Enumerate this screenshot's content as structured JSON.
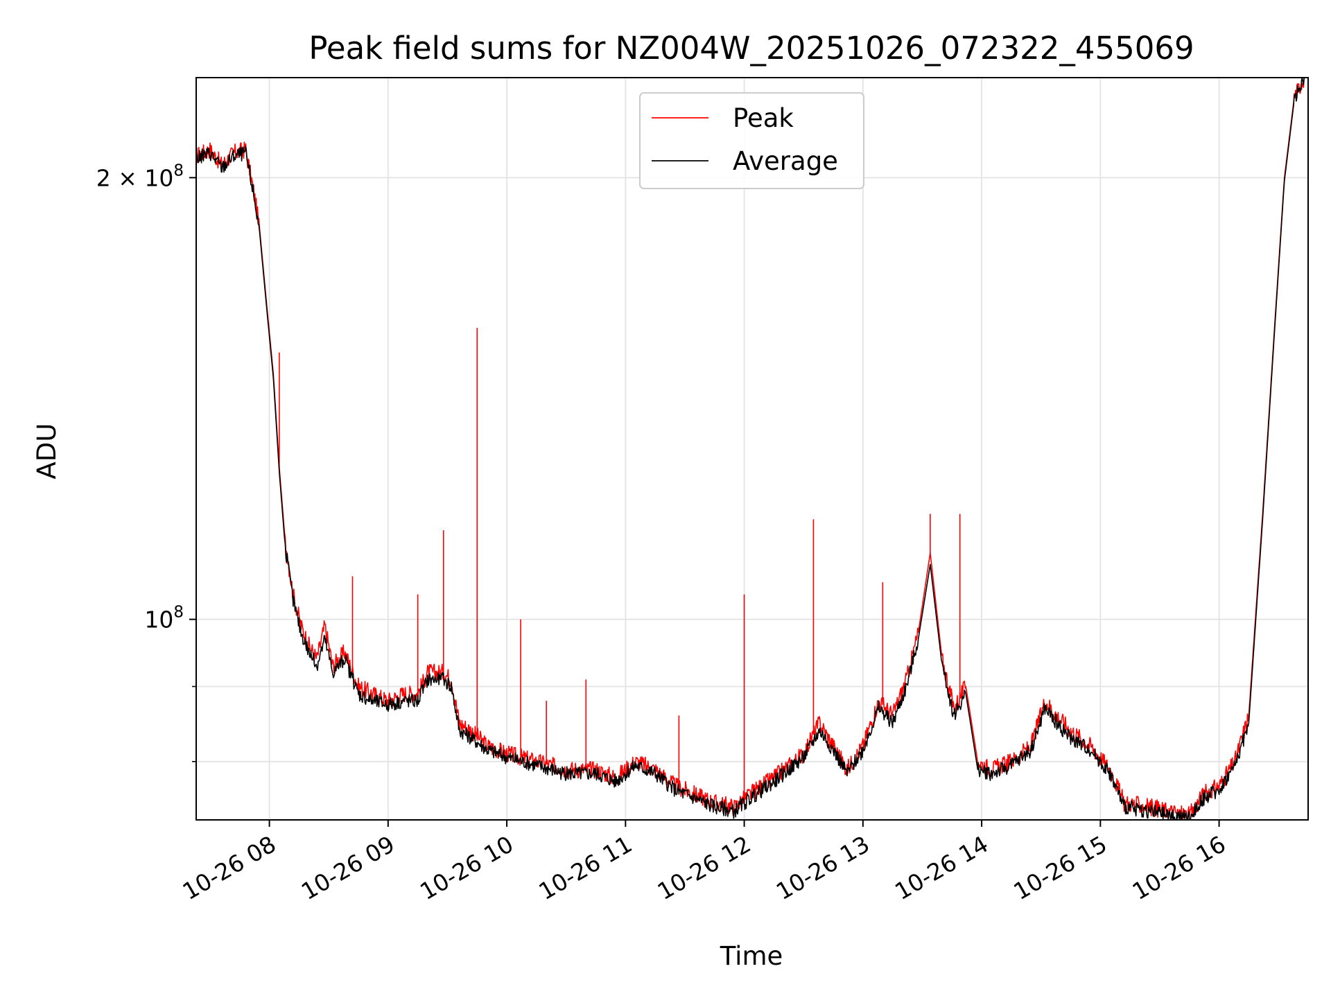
{
  "chart_data": {
    "type": "line",
    "title": "Peak field sums for NZ004W_20251026_072322_455069",
    "xlabel": "Time",
    "ylabel": "ADU",
    "yscale": "log",
    "xlim": [
      "2025-10-26T07:23",
      "2025-10-26T16:45"
    ],
    "ylim": [
      73000000,
      234000000
    ],
    "grid": true,
    "legend_position": "top-center",
    "x_ticks": [
      "10-26 08",
      "10-26 09",
      "10-26 10",
      "10-26 11",
      "10-26 12",
      "10-26 13",
      "10-26 14",
      "10-26 15",
      "10-26 16"
    ],
    "y_ticks": [
      {
        "value": 200000000,
        "label_base": "2 × 10",
        "label_exp": "8"
      },
      {
        "value": 100000000,
        "label_base": "10",
        "label_exp": "8"
      }
    ],
    "y_minor_ticks": [
      90000000,
      80000000
    ],
    "series": [
      {
        "name": "Peak",
        "color": "#ff0000",
        "points": [
          [
            "07:23",
            207000000
          ],
          [
            "07:30",
            209000000
          ],
          [
            "07:36",
            204000000
          ],
          [
            "07:42",
            208000000
          ],
          [
            "07:48",
            209000000
          ],
          [
            "07:52",
            196000000
          ],
          [
            "07:55",
            185000000
          ],
          [
            "07:59",
            162000000
          ],
          [
            "08:02",
            147000000
          ],
          [
            "08:05",
            127000000
          ],
          [
            "08:08",
            113000000
          ],
          [
            "08:12",
            104000000
          ],
          [
            "08:16",
            99000000
          ],
          [
            "08:20",
            96000000
          ],
          [
            "08:24",
            94000000
          ],
          [
            "08:28",
            99000000
          ],
          [
            "08:32",
            93000000
          ],
          [
            "08:38",
            95000000
          ],
          [
            "08:45",
            90000000
          ],
          [
            "08:52",
            89000000
          ],
          [
            "09:00",
            88000000
          ],
          [
            "09:08",
            89000000
          ],
          [
            "09:15",
            89000000
          ],
          [
            "09:20",
            92000000
          ],
          [
            "09:28",
            92000000
          ],
          [
            "09:32",
            91000000
          ],
          [
            "09:36",
            85000000
          ],
          [
            "09:42",
            84000000
          ],
          [
            "09:50",
            82000000
          ],
          [
            "10:00",
            81000000
          ],
          [
            "10:15",
            80000000
          ],
          [
            "10:30",
            79000000
          ],
          [
            "10:45",
            79000000
          ],
          [
            "10:55",
            78000000
          ],
          [
            "11:05",
            80000000
          ],
          [
            "11:15",
            79000000
          ],
          [
            "11:25",
            77000000
          ],
          [
            "11:35",
            76000000
          ],
          [
            "11:45",
            75000000
          ],
          [
            "11:55",
            74500000
          ],
          [
            "12:03",
            76000000
          ],
          [
            "12:15",
            78000000
          ],
          [
            "12:30",
            81000000
          ],
          [
            "12:38",
            85000000
          ],
          [
            "12:45",
            82000000
          ],
          [
            "12:52",
            79000000
          ],
          [
            "13:00",
            82000000
          ],
          [
            "13:08",
            88000000
          ],
          [
            "13:15",
            86000000
          ],
          [
            "13:22",
            91000000
          ],
          [
            "13:28",
            98000000
          ],
          [
            "13:34",
            111000000
          ],
          [
            "13:40",
            94000000
          ],
          [
            "13:46",
            87000000
          ],
          [
            "13:52",
            90000000
          ],
          [
            "13:58",
            80000000
          ],
          [
            "14:05",
            79000000
          ],
          [
            "14:15",
            80000000
          ],
          [
            "14:25",
            82000000
          ],
          [
            "14:32",
            88000000
          ],
          [
            "14:38",
            86000000
          ],
          [
            "14:45",
            84000000
          ],
          [
            "14:55",
            82000000
          ],
          [
            "15:05",
            79000000
          ],
          [
            "15:12",
            75000000
          ],
          [
            "15:25",
            74500000
          ],
          [
            "15:35",
            74000000
          ],
          [
            "15:45",
            73500000
          ],
          [
            "15:52",
            76000000
          ],
          [
            "16:00",
            77000000
          ],
          [
            "16:08",
            80000000
          ],
          [
            "16:15",
            86000000
          ],
          [
            "16:22",
            118000000
          ],
          [
            "16:28",
            158000000
          ],
          [
            "16:33",
            200000000
          ],
          [
            "16:38",
            227000000
          ],
          [
            "16:43",
            234000000
          ]
        ],
        "spikes": [
          [
            "08:05",
            152000000
          ],
          [
            "08:42",
            107000000
          ],
          [
            "09:15",
            104000000
          ],
          [
            "09:28",
            115000000
          ],
          [
            "09:45",
            158000000
          ],
          [
            "10:07",
            100000000
          ],
          [
            "10:20",
            88000000
          ],
          [
            "10:40",
            91000000
          ],
          [
            "11:27",
            86000000
          ],
          [
            "12:00",
            104000000
          ],
          [
            "12:35",
            117000000
          ],
          [
            "13:10",
            106000000
          ],
          [
            "13:34",
            118000000
          ],
          [
            "13:49",
            118000000
          ]
        ]
      },
      {
        "name": "Average",
        "color": "#000000",
        "points": [
          [
            "07:23",
            206000000
          ],
          [
            "07:30",
            208000000
          ],
          [
            "07:36",
            203000000
          ],
          [
            "07:42",
            207000000
          ],
          [
            "07:48",
            208000000
          ],
          [
            "07:52",
            195000000
          ],
          [
            "07:55",
            184000000
          ],
          [
            "07:59",
            161000000
          ],
          [
            "08:02",
            146000000
          ],
          [
            "08:05",
            126000000
          ],
          [
            "08:08",
            112000000
          ],
          [
            "08:12",
            103000000
          ],
          [
            "08:16",
            98000000
          ],
          [
            "08:20",
            95000000
          ],
          [
            "08:24",
            93000000
          ],
          [
            "08:28",
            97000000
          ],
          [
            "08:32",
            92000000
          ],
          [
            "08:38",
            94000000
          ],
          [
            "08:45",
            89000000
          ],
          [
            "08:52",
            88000000
          ],
          [
            "09:00",
            87500000
          ],
          [
            "09:08",
            88000000
          ],
          [
            "09:15",
            88000000
          ],
          [
            "09:20",
            91000000
          ],
          [
            "09:28",
            91000000
          ],
          [
            "09:32",
            90000000
          ],
          [
            "09:36",
            84000000
          ],
          [
            "09:42",
            83000000
          ],
          [
            "09:50",
            81500000
          ],
          [
            "10:00",
            80500000
          ],
          [
            "10:15",
            79500000
          ],
          [
            "10:30",
            78500000
          ],
          [
            "10:45",
            78500000
          ],
          [
            "10:55",
            77500000
          ],
          [
            "11:05",
            79500000
          ],
          [
            "11:15",
            78500000
          ],
          [
            "11:25",
            76500000
          ],
          [
            "11:35",
            75500000
          ],
          [
            "11:45",
            74500000
          ],
          [
            "11:55",
            74000000
          ],
          [
            "12:03",
            75500000
          ],
          [
            "12:15",
            77500000
          ],
          [
            "12:30",
            80500000
          ],
          [
            "12:38",
            84000000
          ],
          [
            "12:45",
            81500000
          ],
          [
            "12:52",
            78500000
          ],
          [
            "13:00",
            81500000
          ],
          [
            "13:08",
            87000000
          ],
          [
            "13:15",
            85000000
          ],
          [
            "13:22",
            90000000
          ],
          [
            "13:28",
            97000000
          ],
          [
            "13:34",
            109000000
          ],
          [
            "13:40",
            93000000
          ],
          [
            "13:46",
            86000000
          ],
          [
            "13:52",
            89000000
          ],
          [
            "13:58",
            79000000
          ],
          [
            "14:05",
            78500000
          ],
          [
            "14:15",
            79500000
          ],
          [
            "14:25",
            81500000
          ],
          [
            "14:32",
            87000000
          ],
          [
            "14:38",
            85000000
          ],
          [
            "14:45",
            83000000
          ],
          [
            "14:55",
            81500000
          ],
          [
            "15:05",
            78500000
          ],
          [
            "15:12",
            74500000
          ],
          [
            "15:25",
            74000000
          ],
          [
            "15:35",
            73500000
          ],
          [
            "15:45",
            73200000
          ],
          [
            "15:52",
            75500000
          ],
          [
            "16:00",
            76500000
          ],
          [
            "16:08",
            79500000
          ],
          [
            "16:15",
            85000000
          ],
          [
            "16:22",
            117000000
          ],
          [
            "16:28",
            157000000
          ],
          [
            "16:33",
            199000000
          ],
          [
            "16:38",
            226000000
          ],
          [
            "16:43",
            234000000
          ]
        ]
      }
    ]
  }
}
